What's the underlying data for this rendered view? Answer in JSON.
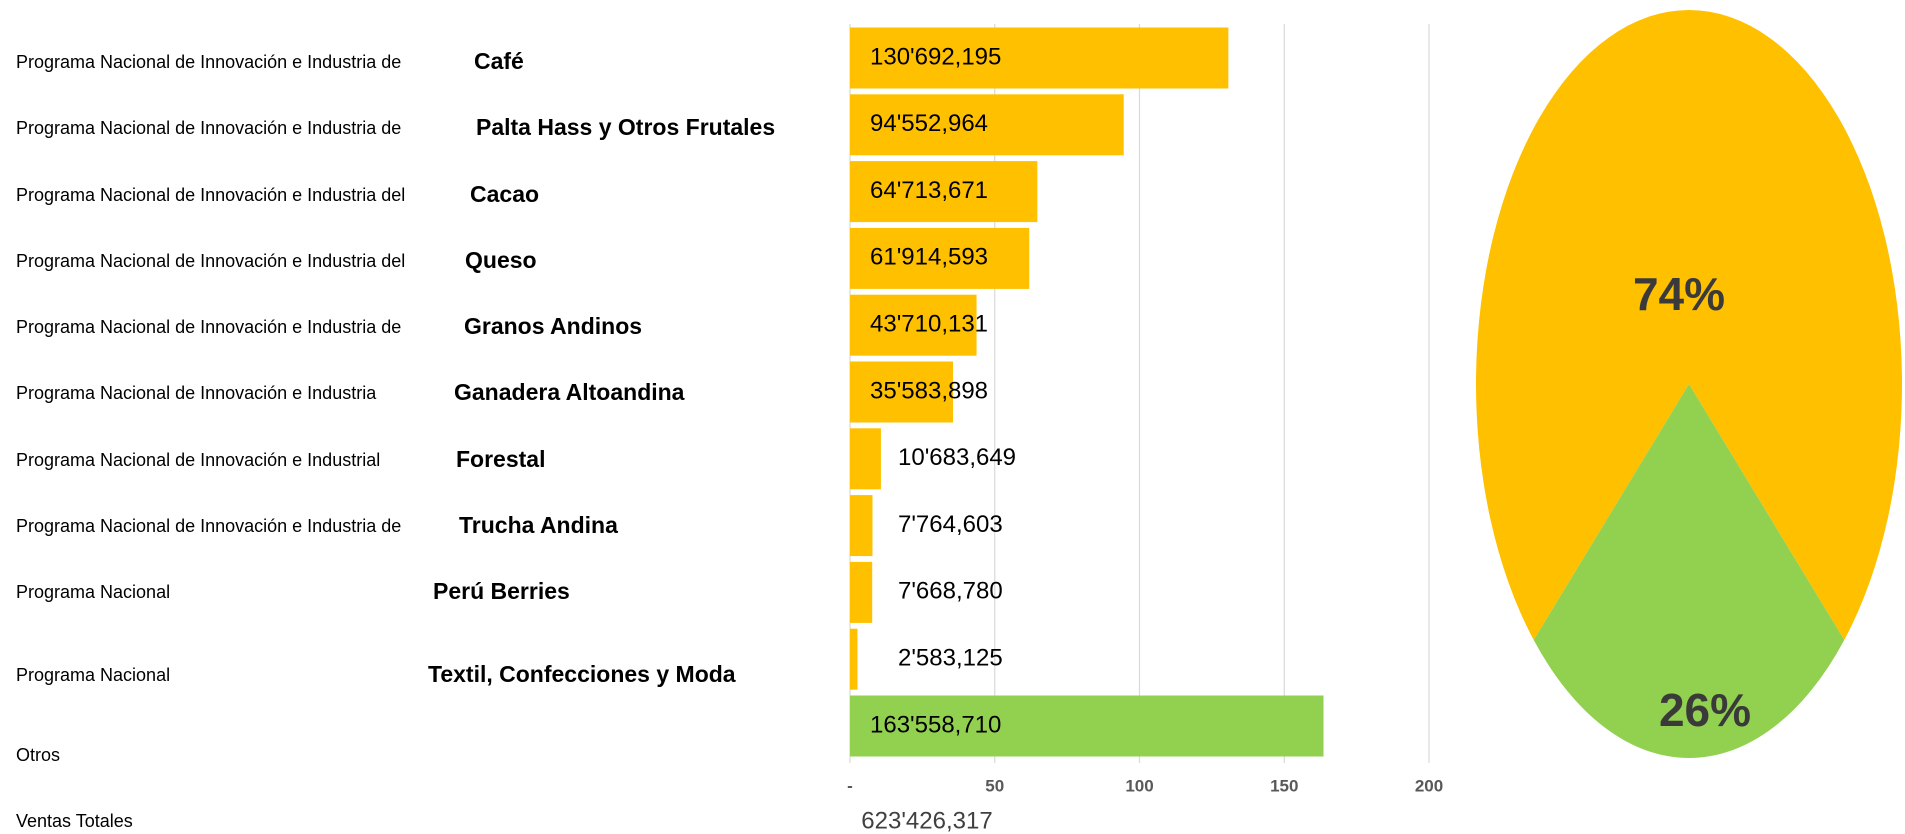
{
  "chart_data": [
    {
      "type": "bar",
      "prefixes": [
        "Programa Nacional de Innovación e Industria de",
        "Programa Nacional de Innovación e Industria de",
        "Programa Nacional de Innovación e Industria del",
        "Programa Nacional de Innovación e Industria del",
        "Programa Nacional de Innovación e Industria de",
        "Programa Nacional de Innovación e Industria",
        "Programa Nacional de Innovación e Industrial",
        "Programa Nacional de Innovación e Industria de",
        "Programa Nacional",
        "Programa Nacional",
        null
      ],
      "categories": [
        "Café",
        "Palta Hass y Otros Frutales",
        "Cacao",
        "Queso",
        "Granos Andinos",
        "Ganadera Altoandina",
        "Forestal",
        "Trucha Andina",
        "Perú Berries",
        "Textil, Confecciones y Moda",
        "Otros"
      ],
      "values": [
        130.692195,
        94.552964,
        64.713671,
        61.914593,
        43.710131,
        35.583898,
        10.683649,
        7.764603,
        7.66878,
        2.583125,
        163.55871
      ],
      "value_labels": [
        "130'692,195",
        "94'552,964",
        "64'713,671",
        "61'914,593",
        "43'710,131",
        "35'583,898",
        "10'683,649",
        "7'764,603",
        "7'668,780",
        "2'583,125",
        "163'558,710"
      ],
      "colors": [
        "#ffc000",
        "#ffc000",
        "#ffc000",
        "#ffc000",
        "#ffc000",
        "#ffc000",
        "#ffc000",
        "#ffc000",
        "#ffc000",
        "#ffc000",
        "#92d050"
      ],
      "xlim": [
        0,
        200
      ],
      "xticks": [
        {
          "value": 0,
          "label": "-"
        },
        50,
        100,
        150,
        200
      ],
      "grid": true
    },
    {
      "type": "pie",
      "values": [
        74,
        26
      ],
      "value_labels": [
        "74%",
        "26%"
      ],
      "colors": [
        "#ffc000",
        "#92d050"
      ]
    }
  ],
  "total": {
    "label": "Ventas Totales",
    "value": "623'426,317"
  }
}
